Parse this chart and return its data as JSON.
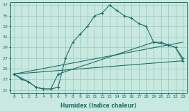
{
  "xlabel": "Humidex (Indice chaleur)",
  "bg_color": "#c8e8e0",
  "grid_color": "#98c8c0",
  "line_color": "#1a7068",
  "xlim": [
    -0.5,
    23.5
  ],
  "ylim": [
    20.5,
    37.5
  ],
  "yticks": [
    21,
    23,
    25,
    27,
    29,
    31,
    33,
    35,
    37
  ],
  "xticks": [
    0,
    1,
    2,
    3,
    4,
    5,
    6,
    7,
    8,
    9,
    10,
    11,
    12,
    13,
    14,
    15,
    16,
    17,
    18,
    19,
    20,
    21,
    22,
    23
  ],
  "curve1_x": [
    0,
    1,
    2,
    3,
    4,
    5,
    6,
    7,
    8,
    9,
    10,
    11,
    12,
    13,
    14,
    15,
    16,
    17,
    18,
    19,
    20,
    21,
    22,
    23
  ],
  "curve1_y": [
    24.0,
    23.0,
    22.5,
    21.5,
    21.2,
    21.2,
    21.5,
    27.0,
    30.0,
    31.5,
    33.0,
    35.0,
    35.5,
    37.0,
    36.0,
    35.0,
    34.5,
    33.5,
    33.0,
    30.0,
    30.0,
    29.5,
    29.0,
    27.0
  ],
  "curve2_x": [
    0,
    2,
    3,
    4,
    5,
    6,
    19,
    21,
    22,
    23
  ],
  "curve2_y": [
    24.0,
    22.5,
    21.5,
    21.2,
    21.2,
    24.0,
    30.0,
    29.5,
    29.0,
    26.5
  ],
  "line1_x": [
    0,
    23
  ],
  "line1_y": [
    24.0,
    30.0
  ],
  "line2_x": [
    0,
    23
  ],
  "line2_y": [
    24.0,
    26.5
  ]
}
